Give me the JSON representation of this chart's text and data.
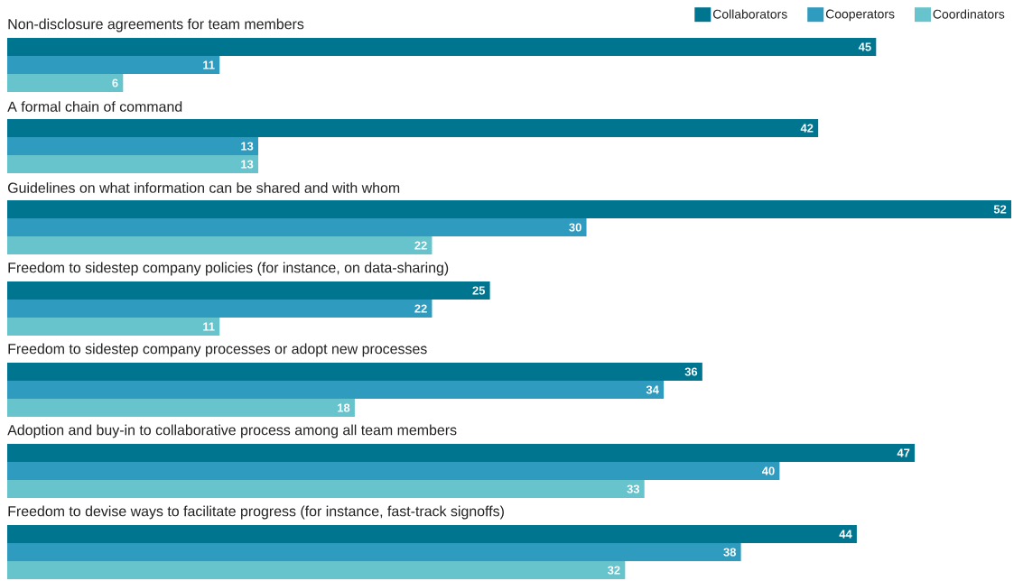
{
  "chart_data": {
    "type": "bar",
    "orientation": "horizontal",
    "categories": [
      "Non-disclosure agreements for team members",
      "A formal chain of command",
      "Guidelines on what information can be shared and with whom",
      "Freedom to sidestep company policies (for instance, on data-sharing)",
      "Freedom to sidestep company processes or adopt new processes",
      "Adoption and buy-in to collaborative process among all team members",
      "Freedom to devise ways to facilitate progress (for instance, fast-track signoffs)"
    ],
    "series": [
      {
        "name": "Collaborators",
        "color": "#007590",
        "values": [
          45,
          42,
          52,
          25,
          36,
          47,
          44
        ]
      },
      {
        "name": "Cooperators",
        "color": "#2e9bbf",
        "values": [
          11,
          13,
          30,
          22,
          34,
          40,
          38
        ]
      },
      {
        "name": "Coordinators",
        "color": "#67c3cc",
        "values": [
          6,
          13,
          22,
          11,
          18,
          33,
          32
        ]
      }
    ],
    "xlim": [
      0,
      52
    ],
    "data_labels": true,
    "legend": "top right",
    "tick_labels": "y"
  }
}
